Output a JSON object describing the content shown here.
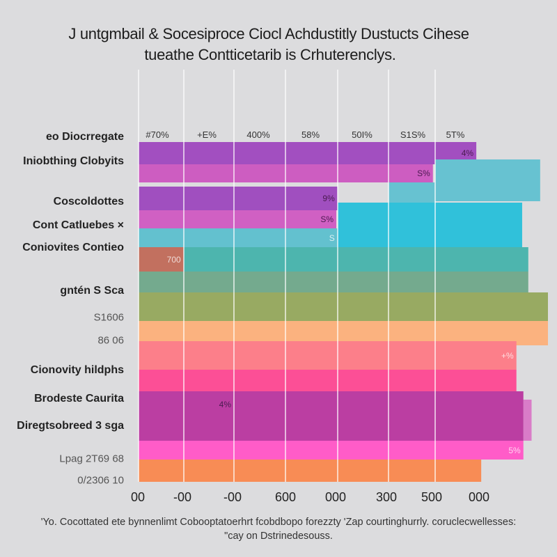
{
  "chart_data": {
    "type": "bar",
    "orientation": "horizontal",
    "title": "J untgmbail & Socesiproce Ciocl Achdustitly Dustucts Cihese",
    "subtitle": "tueathe Contticetarib is Crhuterenclys.",
    "categories": [
      "eo Diocrregate",
      "Iniobthing Clobyits",
      "Coscoldottes",
      "Cont Catluebes ×",
      "Coniovites Contieo",
      "gntén S Sca",
      "S1606",
      "86 06",
      "Cionovity hildphs",
      "Brodeste Caurita",
      "Diregtsobreed 3 sga",
      "Lpag 2T69 68",
      "0/2306 10"
    ],
    "category_styles": [
      "bold",
      "bold",
      "bold",
      "bold",
      "bold",
      "bold",
      "light",
      "light",
      "bold",
      "bold",
      "bold",
      "light",
      "light"
    ],
    "top_labels": [
      "#70%",
      "+E%",
      "400%",
      "58%",
      "50I%",
      "S1S%",
      "5T%"
    ],
    "x_tick_labels": [
      "00",
      "-00",
      "-00",
      "600",
      "000",
      "300",
      "500",
      "000"
    ],
    "xlim": [
      0,
      100
    ],
    "grid": true,
    "bars": [
      {
        "start": 0,
        "end": 82.5,
        "color": "#a24fc0",
        "label": "4%"
      },
      {
        "start": 72.4,
        "end": 98.1,
        "color": "#67c2d1",
        "label": ""
      },
      {
        "start": 0,
        "end": 71.9,
        "color": "#cd5dc1",
        "label": "S%"
      },
      {
        "start": 61.1,
        "end": 72.4,
        "color": "#67c2d1",
        "label": ""
      },
      {
        "start": 0,
        "end": 48.6,
        "color": "#a04fbf",
        "label": "9%"
      },
      {
        "start": 0,
        "end": 48.3,
        "color": "#d060c3",
        "label": "S%"
      },
      {
        "start": 48.6,
        "end": 93.7,
        "color": "#30c1da",
        "label": ""
      },
      {
        "start": 0,
        "end": 48.6,
        "color": "#63c1cf",
        "label": "S"
      },
      {
        "start": 0,
        "end": 95.2,
        "color": "#4db5ae",
        "label": ""
      },
      {
        "start": 0,
        "end": 11.0,
        "color": "#c2705f",
        "label": "700"
      },
      {
        "start": 0,
        "end": 95.2,
        "color": "#74aa8e",
        "label": ""
      },
      {
        "start": 0,
        "end": 100,
        "color": "#98aa62",
        "label": ""
      },
      {
        "start": 0,
        "end": 100,
        "color": "#fbb27f",
        "label": ""
      },
      {
        "start": 0,
        "end": 92.3,
        "color": "#fc7f8a",
        "label": "+%"
      },
      {
        "start": 0,
        "end": 92.3,
        "color": "#fc4f96",
        "label": ""
      },
      {
        "start": 94.0,
        "end": 96.0,
        "color": "#d97cc8",
        "label": ""
      },
      {
        "start": 0,
        "end": 94.0,
        "color": "#bb3ea2",
        "label": "4%"
      },
      {
        "start": 0,
        "end": 94.0,
        "color": "#ff5cc8",
        "label": "5%"
      },
      {
        "start": 0,
        "end": 83.7,
        "color": "#f88c55",
        "label": ""
      }
    ],
    "footnote": [
      "'Yo. Cocottated ete bynnenlimt Cobooptatoerhrt fcobdbopo forezzty 'Zap courtinghurrly. coruclecwellesses:",
      "\"cay on Dstrinedesouss."
    ]
  }
}
